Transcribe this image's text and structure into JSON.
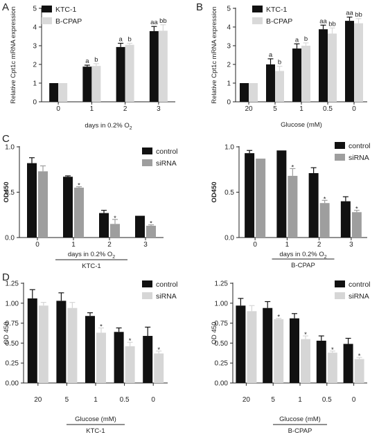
{
  "chart_data": [
    {
      "panel": "A",
      "type": "bar",
      "ylabel": "Relative Cpt1c mRNA expression",
      "xlabel": "days in 0.2% O",
      "xlabel_sub": "2",
      "group_label": "",
      "categories": [
        "0",
        "1",
        "2",
        "3"
      ],
      "ylim": [
        0,
        5
      ],
      "yticks": [
        "0",
        "1",
        "2",
        "3",
        "4",
        "5"
      ],
      "ytick_vals": [
        0,
        1,
        2,
        3,
        4,
        5
      ],
      "legend": [
        "KTC-1",
        "B-CPAP"
      ],
      "colors": [
        "#111111",
        "#d9d9d9"
      ],
      "series": [
        {
          "name": "KTC-1",
          "values": [
            1.0,
            1.88,
            2.93,
            3.78
          ],
          "errors": [
            0,
            0.08,
            0.2,
            0.25
          ],
          "labels": [
            "",
            "a",
            "a",
            "aa"
          ]
        },
        {
          "name": "B-CPAP",
          "values": [
            1.0,
            1.92,
            3.05,
            3.8
          ],
          "errors": [
            0,
            0.12,
            0.08,
            0.32
          ],
          "labels": [
            "",
            "b",
            "b",
            "bb"
          ]
        }
      ]
    },
    {
      "panel": "B",
      "type": "bar",
      "ylabel": "Relative Cpt1c mRNA expression",
      "xlabel": "Glucose (mM)",
      "xlabel_sub": "",
      "group_label": "",
      "categories": [
        "20",
        "5",
        "1",
        "0.5",
        "0"
      ],
      "ylim": [
        0,
        5
      ],
      "yticks": [
        "0",
        "1",
        "2",
        "3",
        "4",
        "5"
      ],
      "ytick_vals": [
        0,
        1,
        2,
        3,
        4,
        5
      ],
      "legend": [
        "KTC-1",
        "B-CPAP"
      ],
      "colors": [
        "#111111",
        "#d9d9d9"
      ],
      "series": [
        {
          "name": "KTC-1",
          "values": [
            1.0,
            2.0,
            2.85,
            3.88,
            4.33
          ],
          "errors": [
            0,
            0.3,
            0.25,
            0.22,
            0.2
          ],
          "labels": [
            "",
            "a",
            "a",
            "aa",
            "aa"
          ]
        },
        {
          "name": "B-CPAP",
          "values": [
            1.0,
            1.65,
            3.0,
            3.65,
            4.2
          ],
          "errors": [
            0,
            0.25,
            0.15,
            0.3,
            0.25
          ],
          "labels": [
            "",
            "b",
            "b",
            "bb",
            "bb"
          ]
        }
      ]
    },
    {
      "panel": "C",
      "type": "bar",
      "ylabel": "OD450",
      "xlabel": "days in 0.2% O",
      "xlabel_sub": "2",
      "group_label": "KTC-1",
      "categories": [
        "0",
        "1",
        "2",
        "3"
      ],
      "ylim": [
        0,
        1.0
      ],
      "yticks": [
        "0.0",
        "0.5",
        "1.0"
      ],
      "ytick_vals": [
        0,
        0.5,
        1.0
      ],
      "legend": [
        "control",
        "siRNA"
      ],
      "colors": [
        "#111111",
        "#9e9e9e"
      ],
      "series": [
        {
          "name": "control",
          "values": [
            0.82,
            0.67,
            0.27,
            0.24
          ],
          "errors": [
            0.06,
            0.01,
            0.03,
            0
          ],
          "labels": [
            "",
            "",
            "",
            ""
          ]
        },
        {
          "name": "siRNA",
          "values": [
            0.73,
            0.55,
            0.15,
            0.13
          ],
          "errors": [
            0.06,
            0.01,
            0.05,
            0.01
          ],
          "labels": [
            "",
            "*",
            "*",
            "*"
          ]
        }
      ]
    },
    {
      "panel": "",
      "type": "bar",
      "ylabel": "OD450",
      "xlabel": "days in 0.2% O",
      "xlabel_sub": "2",
      "group_label": "B-CPAP",
      "categories": [
        "0",
        "1",
        "2",
        "3"
      ],
      "ylim": [
        0,
        1.0
      ],
      "yticks": [
        "0.0",
        "0.5",
        "1.0"
      ],
      "ytick_vals": [
        0,
        0.5,
        1.0
      ],
      "legend": [
        "control",
        "siRNA"
      ],
      "colors": [
        "#111111",
        "#9e9e9e"
      ],
      "series": [
        {
          "name": "control",
          "values": [
            0.93,
            0.96,
            0.71,
            0.4
          ],
          "errors": [
            0.03,
            0,
            0.06,
            0.05
          ],
          "labels": [
            "",
            "",
            "",
            ""
          ]
        },
        {
          "name": "siRNA",
          "values": [
            0.87,
            0.68,
            0.38,
            0.28
          ],
          "errors": [
            0,
            0.08,
            0.03,
            0.02
          ],
          "labels": [
            "",
            "*",
            "*",
            "*"
          ]
        }
      ]
    },
    {
      "panel": "D",
      "type": "bar",
      "ylabel": "OD 450",
      "xlabel": "Glucose (mM)",
      "xlabel_sub": "",
      "group_label": "KTC-1",
      "categories": [
        "20",
        "5",
        "1",
        "0.5",
        "0"
      ],
      "ylim": [
        0,
        1.25
      ],
      "yticks": [
        "0.00",
        "0.25",
        "0.50",
        "0.75",
        "1.00",
        "1.25"
      ],
      "ytick_vals": [
        0,
        0.25,
        0.5,
        0.75,
        1.0,
        1.25
      ],
      "legend": [
        "control",
        "siRNA"
      ],
      "colors": [
        "#111111",
        "#d6d6d6"
      ],
      "series": [
        {
          "name": "control",
          "values": [
            1.06,
            1.03,
            0.84,
            0.64,
            0.59
          ],
          "errors": [
            0.11,
            0.1,
            0.04,
            0.05,
            0.11
          ],
          "labels": [
            "",
            "",
            "",
            "",
            ""
          ]
        },
        {
          "name": "siRNA",
          "values": [
            0.97,
            0.94,
            0.63,
            0.46,
            0.37
          ],
          "errors": [
            0.04,
            0.07,
            0.06,
            0.05,
            0.03
          ],
          "labels": [
            "",
            "",
            "*",
            "*",
            "*"
          ]
        }
      ]
    },
    {
      "panel": "",
      "type": "bar",
      "ylabel": "OD 450",
      "xlabel": "Glucose (mM)",
      "xlabel_sub": "",
      "group_label": "B-CPAP",
      "categories": [
        "20",
        "5",
        "1",
        "0.5",
        "0"
      ],
      "ylim": [
        0,
        1.25
      ],
      "yticks": [
        "0.00",
        "0.25",
        "0.50",
        "0.75",
        "1.00",
        "1.25"
      ],
      "ytick_vals": [
        0,
        0.25,
        0.5,
        0.75,
        1.0,
        1.25
      ],
      "legend": [
        "control",
        "siRNA"
      ],
      "colors": [
        "#111111",
        "#d6d6d6"
      ],
      "series": [
        {
          "name": "control",
          "values": [
            0.97,
            0.94,
            0.81,
            0.53,
            0.49
          ],
          "errors": [
            0.09,
            0.08,
            0.06,
            0.06,
            0.07
          ],
          "labels": [
            "",
            "",
            "",
            "",
            ""
          ]
        },
        {
          "name": "siRNA",
          "values": [
            0.9,
            0.8,
            0.55,
            0.38,
            0.3
          ],
          "errors": [
            0.07,
            0.01,
            0.04,
            0.02,
            0.02
          ],
          "labels": [
            "",
            "*",
            "*",
            "*",
            "*"
          ]
        }
      ]
    }
  ]
}
